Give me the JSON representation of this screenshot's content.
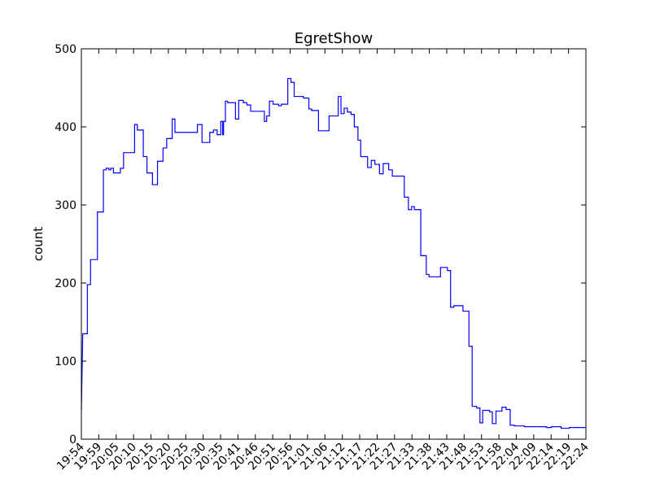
{
  "chart_data": {
    "type": "line",
    "title": "EgretShow",
    "xlabel": "",
    "ylabel": "count",
    "ylim": [
      0,
      500
    ],
    "y_ticks": [
      0,
      100,
      200,
      300,
      400,
      500
    ],
    "x_tick_labels": [
      "19:54",
      "19:59",
      "20:05",
      "20:10",
      "20:15",
      "20:20",
      "20:25",
      "20:30",
      "20:35",
      "20:41",
      "20:46",
      "20:51",
      "20:56",
      "21:01",
      "21:06",
      "21:12",
      "21:17",
      "21:22",
      "21:27",
      "21:33",
      "21:38",
      "21:43",
      "21:48",
      "21:53",
      "21:58",
      "22:04",
      "22:09",
      "22:14",
      "22:19",
      "22:24"
    ],
    "grid": false,
    "line_color": "#0000ff",
    "series": [
      {
        "values": [
          [
            0,
            37
          ],
          [
            0.3,
            135
          ],
          [
            1.3,
            135
          ],
          [
            1.3,
            198
          ],
          [
            2.0,
            198
          ],
          [
            2.0,
            230
          ],
          [
            3.5,
            230
          ],
          [
            3.5,
            291
          ],
          [
            4.8,
            291
          ],
          [
            4.8,
            345
          ],
          [
            5.4,
            345
          ],
          [
            5.4,
            347
          ],
          [
            6.0,
            347
          ],
          [
            6.0,
            345
          ],
          [
            6.4,
            345
          ],
          [
            6.4,
            347
          ],
          [
            7.0,
            347
          ],
          [
            7.0,
            341
          ],
          [
            8.5,
            341
          ],
          [
            8.5,
            347
          ],
          [
            9.2,
            347
          ],
          [
            9.2,
            367
          ],
          [
            11.6,
            367
          ],
          [
            11.6,
            403
          ],
          [
            12.2,
            403
          ],
          [
            12.2,
            396
          ],
          [
            13.5,
            396
          ],
          [
            13.5,
            362
          ],
          [
            14.3,
            362
          ],
          [
            14.3,
            341
          ],
          [
            15.5,
            341
          ],
          [
            15.5,
            326
          ],
          [
            16.6,
            326
          ],
          [
            16.6,
            356
          ],
          [
            17.8,
            356
          ],
          [
            17.8,
            373
          ],
          [
            18.6,
            373
          ],
          [
            18.6,
            385
          ],
          [
            19.8,
            385
          ],
          [
            19.8,
            410
          ],
          [
            20.4,
            410
          ],
          [
            20.4,
            393
          ],
          [
            25.3,
            393
          ],
          [
            25.3,
            403
          ],
          [
            26.3,
            403
          ],
          [
            26.3,
            380
          ],
          [
            28.0,
            380
          ],
          [
            28.0,
            393
          ],
          [
            28.8,
            393
          ],
          [
            28.8,
            396
          ],
          [
            29.6,
            396
          ],
          [
            29.6,
            390
          ],
          [
            30.4,
            390
          ],
          [
            30.4,
            407
          ],
          [
            30.8,
            407
          ],
          [
            30.8,
            390
          ],
          [
            31.0,
            390
          ],
          [
            31.0,
            407
          ],
          [
            31.4,
            407
          ],
          [
            31.4,
            433
          ],
          [
            31.9,
            433
          ],
          [
            31.9,
            431
          ],
          [
            33.6,
            431
          ],
          [
            33.6,
            410
          ],
          [
            34.3,
            410
          ],
          [
            34.3,
            434
          ],
          [
            35.3,
            434
          ],
          [
            35.3,
            431
          ],
          [
            36.1,
            431
          ],
          [
            36.1,
            428
          ],
          [
            36.9,
            428
          ],
          [
            36.9,
            420
          ],
          [
            39.9,
            420
          ],
          [
            39.9,
            407
          ],
          [
            40.4,
            407
          ],
          [
            40.4,
            414
          ],
          [
            41.0,
            414
          ],
          [
            41.0,
            433
          ],
          [
            41.8,
            433
          ],
          [
            41.8,
            429
          ],
          [
            43.0,
            429
          ],
          [
            43.0,
            427
          ],
          [
            43.6,
            427
          ],
          [
            43.6,
            429
          ],
          [
            45.0,
            429
          ],
          [
            45.0,
            462
          ],
          [
            45.7,
            462
          ],
          [
            45.7,
            457
          ],
          [
            46.4,
            457
          ],
          [
            46.4,
            439
          ],
          [
            48.4,
            439
          ],
          [
            48.4,
            437
          ],
          [
            49.6,
            437
          ],
          [
            49.6,
            423
          ],
          [
            50.2,
            423
          ],
          [
            50.2,
            421
          ],
          [
            51.7,
            421
          ],
          [
            51.7,
            395
          ],
          [
            54.0,
            395
          ],
          [
            54.0,
            414
          ],
          [
            56.0,
            414
          ],
          [
            56.0,
            439
          ],
          [
            56.6,
            439
          ],
          [
            56.6,
            417
          ],
          [
            57.3,
            417
          ],
          [
            57.3,
            424
          ],
          [
            58.0,
            424
          ],
          [
            58.0,
            419
          ],
          [
            58.8,
            419
          ],
          [
            58.8,
            416
          ],
          [
            59.5,
            416
          ],
          [
            59.5,
            400
          ],
          [
            60.3,
            400
          ],
          [
            60.3,
            383
          ],
          [
            60.9,
            383
          ],
          [
            60.9,
            362
          ],
          [
            62.4,
            362
          ],
          [
            62.4,
            348
          ],
          [
            63.2,
            348
          ],
          [
            63.2,
            357
          ],
          [
            64.0,
            357
          ],
          [
            64.0,
            352
          ],
          [
            65.0,
            352
          ],
          [
            65.0,
            340
          ],
          [
            65.8,
            340
          ],
          [
            65.8,
            353
          ],
          [
            67.0,
            353
          ],
          [
            67.0,
            345
          ],
          [
            67.8,
            345
          ],
          [
            67.8,
            337
          ],
          [
            70.4,
            337
          ],
          [
            70.4,
            310
          ],
          [
            71.3,
            310
          ],
          [
            71.3,
            294
          ],
          [
            72.0,
            294
          ],
          [
            72.0,
            298
          ],
          [
            72.6,
            298
          ],
          [
            72.6,
            294
          ],
          [
            74.0,
            294
          ],
          [
            74.0,
            235
          ],
          [
            75.2,
            235
          ],
          [
            75.2,
            211
          ],
          [
            75.8,
            211
          ],
          [
            75.8,
            208
          ],
          [
            78.3,
            208
          ],
          [
            78.3,
            220
          ],
          [
            79.8,
            220
          ],
          [
            79.8,
            216
          ],
          [
            80.5,
            216
          ],
          [
            80.5,
            169
          ],
          [
            81.2,
            169
          ],
          [
            81.2,
            171
          ],
          [
            83.2,
            171
          ],
          [
            83.2,
            164
          ],
          [
            84.5,
            164
          ],
          [
            84.5,
            119
          ],
          [
            85.2,
            119
          ],
          [
            85.2,
            42
          ],
          [
            86.2,
            42
          ],
          [
            86.2,
            40
          ],
          [
            86.9,
            40
          ],
          [
            86.9,
            21
          ],
          [
            87.5,
            21
          ],
          [
            87.5,
            37
          ],
          [
            89.0,
            37
          ],
          [
            89.0,
            35
          ],
          [
            89.6,
            35
          ],
          [
            89.6,
            20
          ],
          [
            90.4,
            20
          ],
          [
            90.4,
            36
          ],
          [
            91.7,
            36
          ],
          [
            91.7,
            41
          ],
          [
            92.6,
            41
          ],
          [
            92.6,
            38
          ],
          [
            93.5,
            38
          ],
          [
            93.5,
            18
          ],
          [
            94.4,
            18
          ],
          [
            94.4,
            17
          ],
          [
            96.6,
            17
          ],
          [
            96.6,
            16
          ],
          [
            101.4,
            16
          ],
          [
            101.4,
            15
          ],
          [
            102.5,
            15
          ],
          [
            102.5,
            16
          ],
          [
            104.6,
            16
          ],
          [
            104.6,
            14
          ],
          [
            106.4,
            14
          ],
          [
            106.4,
            15
          ],
          [
            110.0,
            15
          ]
        ]
      }
    ],
    "x_range": [
      0,
      110.0
    ],
    "x_tick_positions": [
      0,
      3.793,
      7.586,
      11.379,
      15.172,
      18.966,
      22.759,
      26.552,
      30.345,
      34.138,
      37.931,
      41.724,
      45.517,
      49.31,
      53.103,
      56.897,
      60.69,
      64.483,
      68.276,
      72.069,
      75.862,
      79.655,
      83.448,
      87.241,
      91.034,
      94.828,
      98.621,
      102.414,
      106.207,
      110.0
    ]
  }
}
